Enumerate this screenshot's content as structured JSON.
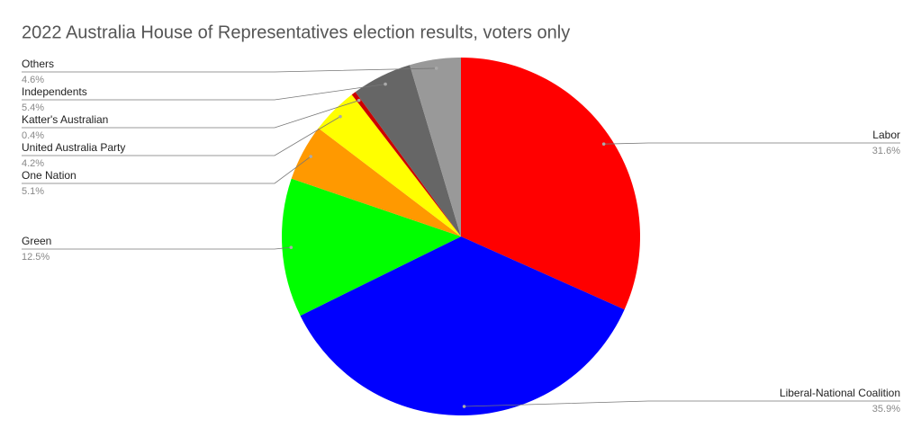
{
  "chart_data": {
    "type": "pie",
    "title": "2022 Australia House of Representatives election results, voters only",
    "categories": [
      "Labor",
      "Liberal-National Coalition",
      "Green",
      "One Nation",
      "United Australia Party",
      "Katter's Australian",
      "Independents",
      "Others"
    ],
    "values": [
      31.6,
      35.9,
      12.5,
      5.1,
      4.2,
      0.4,
      5.4,
      4.6
    ],
    "value_labels": [
      "31.6%",
      "35.9%",
      "12.5%",
      "5.1%",
      "4.2%",
      "0.4%",
      "5.4%",
      "4.6%"
    ],
    "colors": [
      "#ff0000",
      "#0000ff",
      "#00ff00",
      "#ff9900",
      "#ffff00",
      "#cc0000",
      "#666666",
      "#999999"
    ]
  }
}
